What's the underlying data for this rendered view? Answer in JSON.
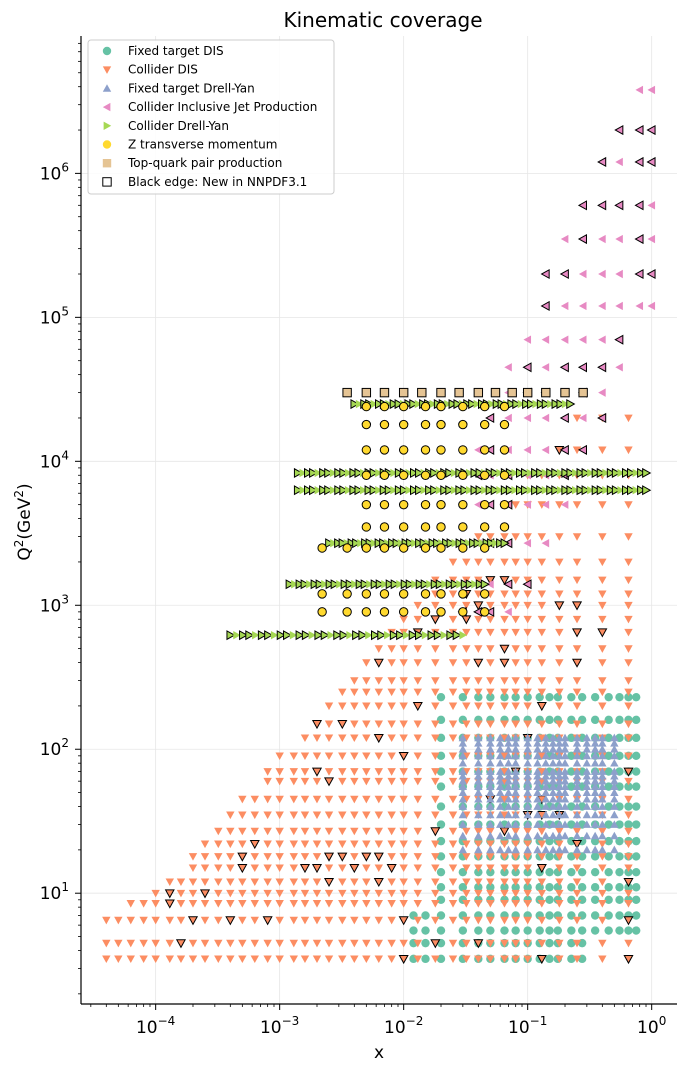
{
  "chart_data": {
    "type": "scatter",
    "title": "Kinematic coverage",
    "xlabel": "x",
    "ylabel_base": "Q",
    "ylabel_sup": "2",
    "ylabel_paren_open": "(GeV",
    "ylabel_unit_sup": "2",
    "ylabel_paren_close": ")",
    "xscale": "log",
    "yscale": "log",
    "xlim": [
      2.5e-05,
      1.6
    ],
    "ylim": [
      1.7,
      9000000.0
    ],
    "grid": true,
    "legend_position": "top-left",
    "x_ticks": [
      {
        "base": "10",
        "exp": "−4",
        "value": 0.0001
      },
      {
        "base": "10",
        "exp": "−3",
        "value": 0.001
      },
      {
        "base": "10",
        "exp": "−2",
        "value": 0.01
      },
      {
        "base": "10",
        "exp": "−1",
        "value": 0.1
      },
      {
        "base": "10",
        "exp": "0",
        "value": 1
      }
    ],
    "y_ticks": [
      {
        "base": "10",
        "exp": "1",
        "value": 10
      },
      {
        "base": "10",
        "exp": "2",
        "value": 100
      },
      {
        "base": "10",
        "exp": "3",
        "value": 1000
      },
      {
        "base": "10",
        "exp": "4",
        "value": 10000
      },
      {
        "base": "10",
        "exp": "5",
        "value": 100000
      },
      {
        "base": "10",
        "exp": "6",
        "value": 1000000
      }
    ],
    "legend": [
      {
        "label": "Fixed target DIS",
        "marker": "circle",
        "color": "#66c2a5"
      },
      {
        "label": "Collider DIS",
        "marker": "triangle-down",
        "color": "#fc8d62"
      },
      {
        "label": "Fixed target Drell-Yan",
        "marker": "triangle-up",
        "color": "#8da0cb"
      },
      {
        "label": "Collider Inclusive Jet Production",
        "marker": "triangle-left",
        "color": "#e78ac3"
      },
      {
        "label": "Collider Drell-Yan",
        "marker": "triangle-right",
        "color": "#a6d854"
      },
      {
        "label": "Z transverse momentum",
        "marker": "circle",
        "color": "#ffd92f"
      },
      {
        "label": "Top-quark pair production",
        "marker": "square",
        "color": "#e5c494"
      },
      {
        "label": "Black edge: New in NNPDF3.1",
        "marker": "square-open",
        "color": "#000000"
      }
    ],
    "series": [
      {
        "marker": "circle",
        "color": "#66c2a5",
        "groups": [
          {
            "xs": [
              0.012,
              0.015,
              0.02,
              0.03,
              0.04,
              0.05,
              0.065,
              0.08,
              0.1,
              0.125,
              0.15,
              0.175,
              0.225,
              0.275,
              0.35,
              0.45,
              0.55,
              0.65,
              0.75
            ],
            "qs": [
              3.5,
              4.5,
              5.5,
              7,
              9,
              11,
              14,
              18,
              23,
              30,
              40,
              55,
              70,
              90,
              120,
              160,
              230
            ]
          }
        ]
      },
      {
        "marker": "triangle-down",
        "color": "#fc8d62",
        "groups": [
          {
            "xs": [
              4e-05,
              5e-05,
              6.3e-05,
              8e-05,
              0.0001,
              0.00013,
              0.00016,
              0.0002,
              0.00025,
              0.00032,
              0.0004,
              0.0005,
              0.00063,
              0.0008,
              0.001,
              0.0013,
              0.0016,
              0.002,
              0.0025,
              0.0032,
              0.004,
              0.005,
              0.0063,
              0.008,
              0.01,
              0.013,
              0.018,
              0.025,
              0.032,
              0.04,
              0.05,
              0.065,
              0.08,
              0.1,
              0.13,
              0.18,
              0.25,
              0.4,
              0.65
            ],
            "qs": [
              3.5,
              4.5,
              6.5,
              8.5,
              10,
              12,
              15,
              18,
              22,
              27,
              35,
              45,
              60,
              70,
              90,
              120,
              150,
              200,
              250,
              300,
              400,
              500,
              650,
              800,
              1000,
              1200,
              1500,
              2000,
              3000,
              5000,
              8000,
              12000,
              20000
            ]
          }
        ]
      },
      {
        "marker": "triangle-up",
        "color": "#8da0cb",
        "groups": [
          {
            "xs": [
              0.03,
              0.04,
              0.05,
              0.06,
              0.07,
              0.08,
              0.1,
              0.12,
              0.14,
              0.16,
              0.18,
              0.2,
              0.25,
              0.3,
              0.35,
              0.4,
              0.5
            ],
            "qs": [
              20,
              25,
              30,
              35,
              40,
              45,
              50,
              55,
              60,
              65,
              70,
              80,
              90,
              100,
              110,
              120
            ]
          }
        ]
      },
      {
        "marker": "triangle-left",
        "color": "#e78ac3",
        "groups": [
          {
            "xs": [
              0.03,
              0.04,
              0.05,
              0.07,
              0.1,
              0.14,
              0.2,
              0.28,
              0.4,
              0.55,
              0.8,
              1.0
            ],
            "qs": [
              900,
              1400,
              2700,
              5000,
              8000,
              12000,
              20000,
              30000,
              45000,
              70000,
              120000,
              200000,
              350000,
              600000,
              1200000,
              2000000,
              3800000
            ]
          }
        ]
      },
      {
        "marker": "triangle-right",
        "color": "#a6d854",
        "groups": [
          {
            "xs_range": [
              0.0014,
              0.9
            ],
            "n": 70,
            "q": 8300
          },
          {
            "xs_range": [
              0.0014,
              0.9
            ],
            "n": 70,
            "q": 6300
          },
          {
            "xs_range": [
              0.004,
              0.22
            ],
            "n": 45,
            "q": 25000
          },
          {
            "xs_range": [
              0.0025,
              0.065
            ],
            "n": 40,
            "q": 2700
          },
          {
            "xs_range": [
              0.0012,
              0.045
            ],
            "n": 40,
            "q": 1400
          },
          {
            "xs_range": [
              0.0004,
              0.03
            ],
            "n": 38,
            "q": 620
          }
        ]
      },
      {
        "marker": "circle",
        "color": "#ffd92f",
        "groups": [
          {
            "xs": [
              0.0022,
              0.0035,
              0.005,
              0.007,
              0.01,
              0.015,
              0.02,
              0.03,
              0.045,
              0.065
            ],
            "qs": [
              900,
              1200,
              2500,
              3500,
              5000,
              8000,
              12000,
              18000,
              24000
            ]
          }
        ]
      },
      {
        "marker": "square",
        "color": "#e5c494",
        "groups": [
          {
            "xs": [
              0.0035,
              0.005,
              0.007,
              0.01,
              0.014,
              0.02,
              0.028,
              0.04,
              0.055,
              0.075,
              0.1,
              0.14,
              0.2,
              0.28
            ],
            "q": 30000
          }
        ]
      }
    ]
  }
}
